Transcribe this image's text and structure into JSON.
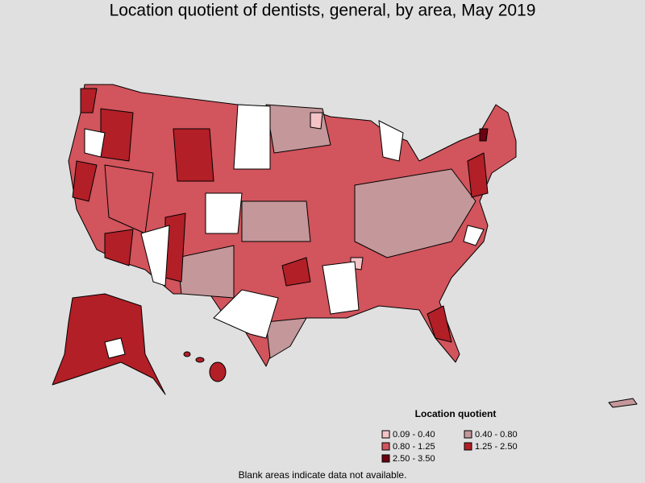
{
  "title": "Location quotient of dentists, general, by area, May 2019",
  "legend": {
    "title": "Location quotient",
    "items": [
      {
        "label": "0.09 - 0.40",
        "color": "#f4c3c6"
      },
      {
        "label": "0.40 - 0.80",
        "color": "#c4979a"
      },
      {
        "label": "0.80 - 1.25",
        "color": "#d2545c"
      },
      {
        "label": "1.25 - 2.50",
        "color": "#b21f27"
      },
      {
        "label": "2.50 - 3.50",
        "color": "#6b0010"
      }
    ]
  },
  "footnote": "Blank areas indicate data not available."
}
